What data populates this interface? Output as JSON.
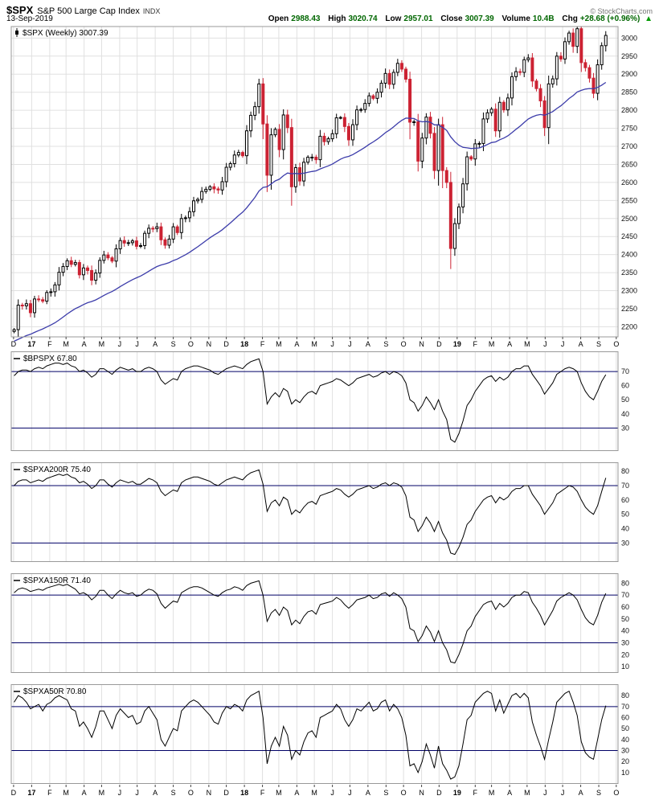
{
  "header": {
    "symbol": "$SPX",
    "name": "S&P 500 Large Cap Index",
    "exchange": "INDX",
    "date": "13-Sep-2019",
    "copyright": "© StockCharts.com",
    "quote": {
      "open_label": "Open",
      "open": "2988.43",
      "high_label": "High",
      "high": "3020.74",
      "low_label": "Low",
      "low": "2957.01",
      "close_label": "Close",
      "close": "3007.39",
      "volume_label": "Volume",
      "volume": "10.4B",
      "chg_label": "Chg",
      "chg": "+28.68 (+0.96%)",
      "direction": "▲"
    }
  },
  "colors": {
    "candle_up": "#000000",
    "candle_down": "#cc2233",
    "ma_line": "#3c3caa",
    "threshold_line": "#000066",
    "grid_line": "#e0e0e0",
    "panel_line": "#000000",
    "border": "#999999",
    "quote_value": "#006600",
    "up_arrow": "#009900"
  },
  "chart_data": {
    "axis": {
      "t0": "2016-11-27",
      "t1": "2019-10-04",
      "month_labels": [
        "D",
        "17",
        "F",
        "M",
        "A",
        "M",
        "J",
        "J",
        "A",
        "S",
        "O",
        "N",
        "D",
        "18",
        "F",
        "M",
        "A",
        "M",
        "J",
        "J",
        "A",
        "S",
        "O",
        "N",
        "D",
        "19",
        "F",
        "M",
        "A",
        "M",
        "J",
        "J",
        "A",
        "S",
        "O"
      ]
    },
    "main": {
      "type": "candlestick",
      "title": "$SPX (Weekly) 3007.39",
      "interval": "weekly",
      "start_date": "2016-12-02",
      "ylim": [
        2172,
        3032
      ],
      "yticks": [
        2200,
        2250,
        2300,
        2350,
        2400,
        2450,
        2500,
        2550,
        2600,
        2650,
        2700,
        2750,
        2800,
        2850,
        2900,
        2950,
        3000
      ],
      "ma": {
        "name": "long-term moving average",
        "alpha": 0.055,
        "seed": 2158
      },
      "closes": [
        2192,
        2260,
        2258,
        2264,
        2239,
        2277,
        2275,
        2271,
        2295,
        2297,
        2316,
        2351,
        2367,
        2383,
        2373,
        2378,
        2344,
        2363,
        2356,
        2329,
        2349,
        2384,
        2399,
        2391,
        2382,
        2416,
        2439,
        2432,
        2433,
        2438,
        2423,
        2425,
        2459,
        2473,
        2472,
        2477,
        2441,
        2426,
        2443,
        2477,
        2461,
        2500,
        2502,
        2519,
        2549,
        2553,
        2575,
        2581,
        2588,
        2582,
        2579,
        2602,
        2642,
        2652,
        2676,
        2683,
        2674,
        2743,
        2786,
        2810,
        2873,
        2762,
        2620,
        2732,
        2747,
        2691,
        2787,
        2752,
        2588,
        2641,
        2604,
        2656,
        2670,
        2670,
        2663,
        2728,
        2713,
        2721,
        2735,
        2779,
        2780,
        2755,
        2718,
        2760,
        2801,
        2802,
        2819,
        2840,
        2833,
        2850,
        2875,
        2902,
        2872,
        2905,
        2930,
        2914,
        2886,
        2767,
        2768,
        2659,
        2723,
        2781,
        2736,
        2633,
        2760,
        2633,
        2600,
        2417,
        2486,
        2532,
        2596,
        2671,
        2665,
        2707,
        2708,
        2776,
        2793,
        2803,
        2743,
        2822,
        2801,
        2834,
        2893,
        2907,
        2905,
        2940,
        2945,
        2881,
        2860,
        2826,
        2752,
        2873,
        2887,
        2950,
        2942,
        2990,
        3014,
        2977,
        3026,
        2932,
        2918,
        2889,
        2847,
        2926,
        2979,
        3007.39
      ]
    },
    "panels": [
      {
        "name": "BPSPX",
        "legend": "$BPSPX 67.80",
        "type": "line",
        "ylim": [
          14,
          84
        ],
        "yticks": [
          30,
          40,
          50,
          60,
          70
        ],
        "hlines": [
          30,
          70
        ],
        "values": [
          67,
          70,
          71,
          71,
          70,
          72,
          73,
          72,
          74,
          75,
          76,
          76,
          75,
          76,
          74,
          73,
          70,
          71,
          69,
          66,
          68,
          72,
          72,
          70,
          68,
          71,
          73,
          72,
          71,
          72,
          70,
          70,
          72,
          73,
          72,
          70,
          64,
          61,
          63,
          65,
          64,
          70,
          72,
          73,
          74,
          74,
          73,
          72,
          71,
          69,
          68,
          70,
          72,
          73,
          74,
          73,
          72,
          75,
          77,
          78,
          79,
          70,
          47,
          52,
          55,
          52,
          58,
          56,
          47,
          50,
          48,
          52,
          55,
          56,
          54,
          60,
          61,
          62,
          63,
          65,
          64,
          62,
          60,
          62,
          65,
          66,
          67,
          68,
          66,
          67,
          69,
          70,
          68,
          70,
          69,
          67,
          62,
          50,
          48,
          42,
          46,
          52,
          48,
          43,
          50,
          42,
          36,
          22,
          20,
          26,
          35,
          46,
          50,
          56,
          60,
          64,
          66,
          67,
          63,
          66,
          64,
          66,
          70,
          72,
          72,
          74,
          74,
          68,
          64,
          60,
          54,
          58,
          62,
          68,
          70,
          72,
          73,
          72,
          70,
          62,
          56,
          52,
          50,
          56,
          63,
          67.8
        ]
      },
      {
        "name": "SPXA200R",
        "legend": "$SPXA200R 75.40",
        "type": "line",
        "ylim": [
          17,
          86
        ],
        "yticks": [
          30,
          40,
          50,
          60,
          70,
          80
        ],
        "hlines": [
          30,
          70
        ],
        "values": [
          70,
          73,
          74,
          74,
          72,
          73,
          74,
          73,
          75,
          76,
          77,
          78,
          77,
          78,
          76,
          75,
          72,
          73,
          71,
          68,
          70,
          74,
          74,
          71,
          69,
          72,
          74,
          73,
          72,
          73,
          71,
          71,
          73,
          75,
          74,
          72,
          66,
          63,
          65,
          67,
          66,
          72,
          74,
          75,
          76,
          76,
          75,
          74,
          73,
          71,
          70,
          72,
          74,
          75,
          76,
          75,
          74,
          77,
          79,
          80,
          81,
          71,
          52,
          58,
          60,
          56,
          62,
          60,
          50,
          53,
          51,
          55,
          58,
          59,
          57,
          63,
          64,
          65,
          66,
          68,
          67,
          64,
          62,
          64,
          67,
          68,
          69,
          70,
          68,
          69,
          71,
          72,
          70,
          72,
          71,
          69,
          63,
          48,
          46,
          38,
          42,
          48,
          44,
          38,
          45,
          37,
          32,
          23,
          22,
          27,
          34,
          43,
          46,
          52,
          56,
          60,
          62,
          63,
          58,
          62,
          60,
          62,
          66,
          68,
          68,
          70,
          70,
          64,
          60,
          56,
          50,
          54,
          58,
          64,
          66,
          68,
          70,
          69,
          66,
          60,
          55,
          52,
          50,
          56,
          66,
          75.4
        ]
      },
      {
        "name": "SPXA150R",
        "legend": "$SPXA150R 71.40",
        "type": "line",
        "ylim": [
          5,
          88
        ],
        "yticks": [
          10,
          20,
          30,
          40,
          50,
          60,
          70,
          80
        ],
        "hlines": [
          30,
          70
        ],
        "values": [
          72,
          75,
          76,
          75,
          73,
          74,
          75,
          74,
          76,
          77,
          78,
          79,
          78,
          79,
          77,
          75,
          71,
          72,
          70,
          66,
          69,
          74,
          74,
          70,
          67,
          71,
          74,
          72,
          71,
          72,
          69,
          70,
          73,
          75,
          74,
          71,
          63,
          59,
          62,
          65,
          64,
          72,
          74,
          76,
          77,
          77,
          76,
          74,
          72,
          70,
          69,
          72,
          74,
          75,
          77,
          76,
          74,
          78,
          80,
          81,
          82,
          70,
          48,
          55,
          58,
          53,
          60,
          57,
          45,
          49,
          46,
          52,
          56,
          57,
          54,
          62,
          63,
          64,
          65,
          68,
          66,
          62,
          59,
          62,
          66,
          67,
          68,
          70,
          67,
          68,
          71,
          72,
          69,
          72,
          70,
          67,
          60,
          42,
          40,
          31,
          36,
          44,
          39,
          31,
          40,
          30,
          24,
          14,
          13,
          20,
          29,
          40,
          44,
          52,
          57,
          62,
          64,
          65,
          58,
          63,
          60,
          63,
          68,
          70,
          70,
          73,
          72,
          64,
          59,
          53,
          45,
          51,
          57,
          65,
          68,
          70,
          72,
          70,
          66,
          58,
          51,
          47,
          45,
          53,
          64,
          71.4
        ]
      },
      {
        "name": "SPXA50R",
        "legend": "$SPXA50R 70.80",
        "type": "line",
        "ylim": [
          0,
          90
        ],
        "yticks": [
          10,
          20,
          30,
          40,
          50,
          60,
          70,
          80
        ],
        "hlines": [
          30,
          70
        ],
        "values": [
          74,
          80,
          78,
          74,
          68,
          70,
          72,
          66,
          72,
          74,
          78,
          80,
          78,
          76,
          68,
          66,
          52,
          56,
          50,
          42,
          52,
          66,
          66,
          58,
          50,
          62,
          68,
          64,
          60,
          62,
          54,
          56,
          66,
          70,
          64,
          58,
          40,
          34,
          42,
          50,
          48,
          66,
          70,
          74,
          76,
          74,
          70,
          66,
          62,
          56,
          54,
          64,
          70,
          68,
          72,
          70,
          66,
          76,
          80,
          82,
          84,
          60,
          18,
          34,
          42,
          34,
          52,
          44,
          22,
          30,
          26,
          38,
          46,
          48,
          42,
          60,
          62,
          64,
          66,
          72,
          68,
          58,
          52,
          58,
          68,
          66,
          70,
          74,
          66,
          68,
          74,
          76,
          66,
          72,
          68,
          60,
          44,
          16,
          18,
          10,
          20,
          36,
          26,
          14,
          34,
          18,
          12,
          4,
          6,
          16,
          36,
          58,
          62,
          74,
          78,
          82,
          84,
          82,
          66,
          76,
          64,
          72,
          80,
          82,
          78,
          82,
          78,
          56,
          44,
          34,
          22,
          40,
          56,
          74,
          78,
          82,
          84,
          74,
          62,
          38,
          28,
          24,
          22,
          40,
          58,
          70.8
        ]
      }
    ]
  }
}
